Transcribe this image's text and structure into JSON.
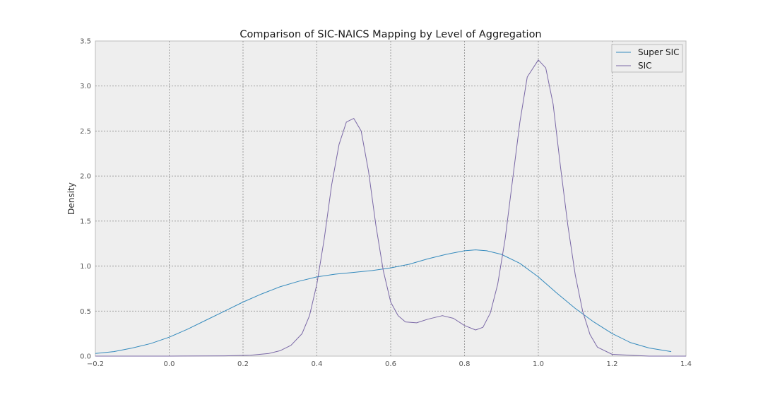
{
  "chart_data": {
    "type": "line",
    "title": "Comparison of SIC-NAICS Mapping by Level of Aggregation",
    "xlabel": "",
    "ylabel": "Density",
    "xlim": [
      -0.2,
      1.4
    ],
    "ylim": [
      0,
      3.5
    ],
    "x_ticks": [
      "−0.2",
      "0.0",
      "0.2",
      "0.4",
      "0.6",
      "0.8",
      "1.0",
      "1.2",
      "1.4"
    ],
    "y_ticks": [
      "0.0",
      "0.5",
      "1.0",
      "1.5",
      "2.0",
      "2.5",
      "3.0",
      "3.5"
    ],
    "grid": true,
    "legend_position": "top-right",
    "series": [
      {
        "name": "Super SIC",
        "color": "#348ABD",
        "x": [
          -0.2,
          -0.15,
          -0.1,
          -0.05,
          0.0,
          0.05,
          0.1,
          0.15,
          0.2,
          0.25,
          0.3,
          0.35,
          0.4,
          0.45,
          0.5,
          0.55,
          0.6,
          0.65,
          0.7,
          0.75,
          0.8,
          0.83,
          0.86,
          0.9,
          0.95,
          1.0,
          1.05,
          1.1,
          1.15,
          1.2,
          1.25,
          1.3,
          1.36
        ],
        "y": [
          0.03,
          0.05,
          0.09,
          0.14,
          0.21,
          0.3,
          0.4,
          0.5,
          0.6,
          0.69,
          0.77,
          0.83,
          0.88,
          0.91,
          0.93,
          0.95,
          0.98,
          1.02,
          1.08,
          1.13,
          1.17,
          1.18,
          1.17,
          1.13,
          1.03,
          0.88,
          0.7,
          0.53,
          0.38,
          0.25,
          0.15,
          0.09,
          0.05
        ]
      },
      {
        "name": "SIC",
        "color": "#7A68A6",
        "x": [
          -0.2,
          0.0,
          0.15,
          0.22,
          0.27,
          0.3,
          0.33,
          0.36,
          0.38,
          0.4,
          0.42,
          0.44,
          0.46,
          0.48,
          0.5,
          0.52,
          0.54,
          0.56,
          0.58,
          0.6,
          0.62,
          0.64,
          0.67,
          0.7,
          0.74,
          0.77,
          0.8,
          0.83,
          0.85,
          0.87,
          0.89,
          0.91,
          0.93,
          0.95,
          0.97,
          1.0,
          1.02,
          1.04,
          1.06,
          1.08,
          1.1,
          1.12,
          1.14,
          1.16,
          1.2,
          1.3,
          1.4
        ],
        "y": [
          0.0,
          0.0,
          0.003,
          0.01,
          0.03,
          0.06,
          0.12,
          0.25,
          0.45,
          0.8,
          1.3,
          1.9,
          2.35,
          2.6,
          2.64,
          2.5,
          2.05,
          1.45,
          0.95,
          0.6,
          0.45,
          0.38,
          0.37,
          0.41,
          0.45,
          0.42,
          0.34,
          0.29,
          0.32,
          0.48,
          0.8,
          1.3,
          1.95,
          2.6,
          3.1,
          3.29,
          3.2,
          2.8,
          2.1,
          1.45,
          0.9,
          0.5,
          0.24,
          0.1,
          0.02,
          0.0,
          0.0
        ]
      }
    ]
  }
}
